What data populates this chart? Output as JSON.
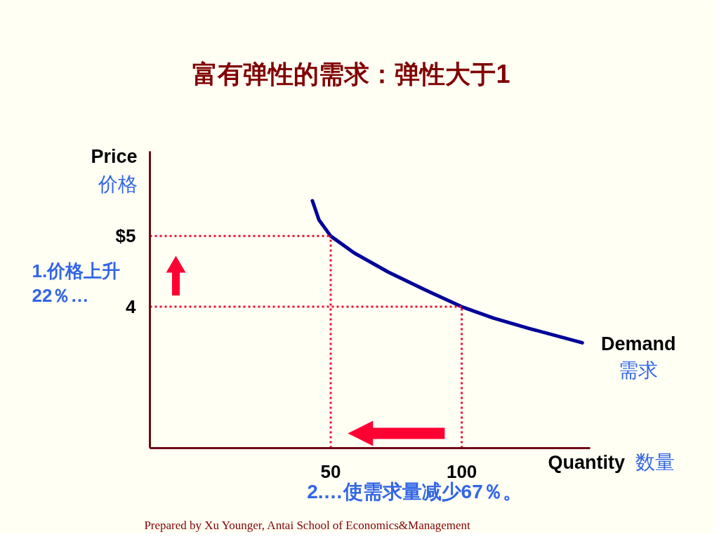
{
  "chart_data": {
    "type": "line",
    "title": "富有弹性的需求：弹性大于1",
    "xlabel": "Quantity 数量",
    "ylabel": "Price\n价格",
    "x": [
      43,
      45.5,
      50,
      59,
      72,
      86,
      100,
      112,
      126,
      146
    ],
    "series": [
      {
        "name": "Demand\n需求",
        "color": "#000099",
        "values": [
          5.5,
          5.23,
          5,
          4.76,
          4.49,
          4.24,
          4,
          3.84,
          3.69,
          3.49
        ]
      }
    ],
    "xlim": [
      -19,
      149
    ],
    "ylim": [
      2,
      6.2
    ],
    "xticks": [
      50,
      100
    ],
    "yticks": [
      4,
      {
        "value": 5,
        "label": "$5"
      }
    ],
    "ref_lines": [
      {
        "axis": "y",
        "value": 4,
        "color": "#ee1133",
        "line_style": "dotted"
      },
      {
        "axis": "y",
        "value": 5,
        "color": "#ee1133",
        "line_style": "dotted"
      },
      {
        "axis": "x",
        "value": 100,
        "color": "#ee1133",
        "line_style": "dotted"
      },
      {
        "axis": "x",
        "value": 50,
        "color": "#ee1133",
        "line_style": "dotted"
      }
    ],
    "annotations": [
      "1.价格上升\n22％…",
      "2.…使需求量减少67％。",
      "Prepared by Xu Younger,  Antai School of Economics&Management"
    ],
    "grid": false,
    "marker": "none",
    "line_style": "solid"
  }
}
